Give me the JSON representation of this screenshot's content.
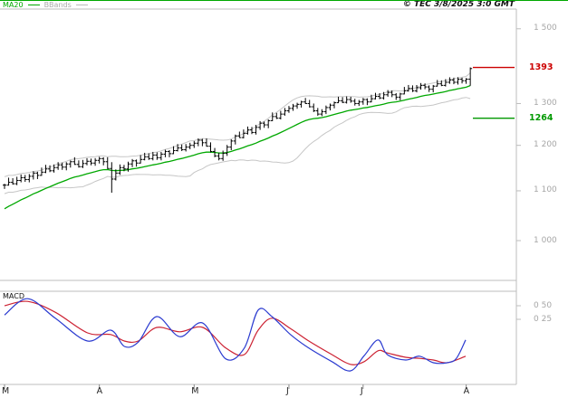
{
  "header": {
    "copyright": "© TEC 3/8/2025 3:0 GMT"
  },
  "legend": {
    "ma20": "MA20",
    "bbands": "BBands"
  },
  "colors": {
    "ma20": "#00a800",
    "bbands": "#c6c6c6",
    "bars": "#000000",
    "resistance": "#cc0000",
    "support": "#009900",
    "macd_line": "#2b3bd0",
    "macd_signal": "#cc2233",
    "frame": "#bcbcbc",
    "tick_text": "#a6a6a6",
    "month_text": "#222222",
    "top_border": "#00a800"
  },
  "chart_data": {
    "type": "candlestick",
    "bar_style": "ohlc",
    "y_axis": {
      "scale": "log",
      "ticks": [
        {
          "value": 1500,
          "label": "1 500"
        },
        {
          "value": 1300,
          "label": "1 300"
        },
        {
          "value": 1200,
          "label": "1 200"
        },
        {
          "value": 1100,
          "label": "1 100"
        },
        {
          "value": 1000,
          "label": "1 000"
        }
      ]
    },
    "x_axis": {
      "tick_labels": [
        "M",
        "A",
        "M",
        "J",
        "J",
        "A"
      ],
      "tick_bar_index": [
        0,
        23,
        46,
        69,
        87,
        112
      ]
    },
    "levels": [
      {
        "label": "1393",
        "value": 1393,
        "color": "#cc0000",
        "kind": "resistance"
      },
      {
        "label": "1264",
        "value": 1264,
        "color": "#009900",
        "kind": "support"
      }
    ],
    "closes": [
      1112,
      1118,
      1115,
      1122,
      1128,
      1124,
      1131,
      1138,
      1133,
      1140,
      1147,
      1143,
      1150,
      1156,
      1151,
      1158,
      1163,
      1157,
      1152,
      1159,
      1164,
      1160,
      1166,
      1170,
      1163,
      1148,
      1125,
      1138,
      1150,
      1147,
      1158,
      1165,
      1160,
      1168,
      1174,
      1170,
      1178,
      1172,
      1180,
      1186,
      1181,
      1188,
      1194,
      1190,
      1196,
      1200,
      1205,
      1212,
      1206,
      1198,
      1186,
      1176,
      1170,
      1182,
      1196,
      1210,
      1222,
      1218,
      1228,
      1236,
      1230,
      1242,
      1252,
      1248,
      1258,
      1268,
      1264,
      1274,
      1282,
      1288,
      1294,
      1298,
      1304,
      1300,
      1292,
      1282,
      1274,
      1280,
      1290,
      1296,
      1302,
      1307,
      1303,
      1310,
      1306,
      1300,
      1304,
      1310,
      1304,
      1312,
      1318,
      1314,
      1322,
      1328,
      1322,
      1316,
      1324,
      1332,
      1338,
      1332,
      1340,
      1346,
      1342,
      1336,
      1344,
      1350,
      1346,
      1354,
      1360,
      1354,
      1362,
      1358,
      1362,
      1390
    ],
    "bar_overrides": {
      "26": {
        "high": 1162,
        "low": 1096
      },
      "113": {
        "high": 1393,
        "low": 1345
      }
    },
    "indicators": {
      "ma20": {
        "label": "MA20",
        "period": 20,
        "seed": 1058,
        "color": "#00a800"
      },
      "bbands": {
        "label": "BBands",
        "period": 20,
        "mult": 2,
        "color": "#c6c6c6"
      },
      "macd": {
        "label": "MACD",
        "y_ticks": [
          {
            "value": 0.5,
            "label": "0 50"
          },
          {
            "value": 0.25,
            "label": "0 25"
          }
        ],
        "line": [
          [
            0,
            0.33
          ],
          [
            0.05,
            0.63
          ],
          [
            0.11,
            0.27
          ],
          [
            0.18,
            -0.15
          ],
          [
            0.23,
            0.05
          ],
          [
            0.26,
            -0.25
          ],
          [
            0.29,
            -0.17
          ],
          [
            0.33,
            0.3
          ],
          [
            0.38,
            -0.07
          ],
          [
            0.43,
            0.18
          ],
          [
            0.48,
            -0.48
          ],
          [
            0.52,
            -0.28
          ],
          [
            0.55,
            0.42
          ],
          [
            0.58,
            0.3
          ],
          [
            0.62,
            -0.03
          ],
          [
            0.66,
            -0.28
          ],
          [
            0.71,
            -0.53
          ],
          [
            0.75,
            -0.7
          ],
          [
            0.78,
            -0.42
          ],
          [
            0.81,
            -0.13
          ],
          [
            0.83,
            -0.4
          ],
          [
            0.87,
            -0.5
          ],
          [
            0.9,
            -0.43
          ],
          [
            0.93,
            -0.55
          ],
          [
            0.96,
            -0.55
          ],
          [
            0.98,
            -0.47
          ],
          [
            1,
            -0.13
          ]
        ],
        "signal": [
          [
            0,
            0.5
          ],
          [
            0.05,
            0.58
          ],
          [
            0.11,
            0.38
          ],
          [
            0.18,
            0.0
          ],
          [
            0.23,
            -0.03
          ],
          [
            0.26,
            -0.15
          ],
          [
            0.29,
            -0.15
          ],
          [
            0.33,
            0.1
          ],
          [
            0.38,
            0.02
          ],
          [
            0.43,
            0.1
          ],
          [
            0.48,
            -0.28
          ],
          [
            0.52,
            -0.4
          ],
          [
            0.55,
            0.05
          ],
          [
            0.58,
            0.27
          ],
          [
            0.62,
            0.08
          ],
          [
            0.66,
            -0.15
          ],
          [
            0.71,
            -0.4
          ],
          [
            0.75,
            -0.58
          ],
          [
            0.78,
            -0.53
          ],
          [
            0.81,
            -0.33
          ],
          [
            0.83,
            -0.37
          ],
          [
            0.87,
            -0.45
          ],
          [
            0.9,
            -0.47
          ],
          [
            0.93,
            -0.5
          ],
          [
            0.96,
            -0.55
          ],
          [
            1,
            -0.43
          ]
        ]
      }
    }
  }
}
